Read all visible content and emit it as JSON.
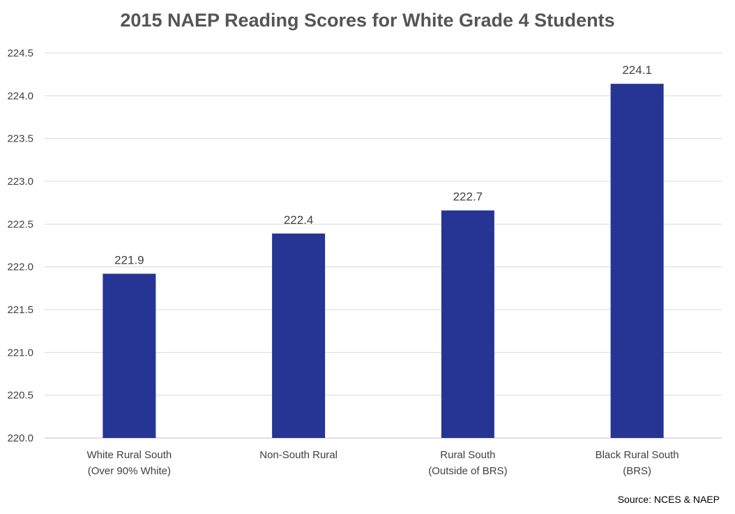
{
  "chart_data": {
    "type": "bar",
    "title": "2015 NAEP Reading Scores for White Grade 4 Students",
    "categories": [
      [
        "White Rural South",
        "(Over 90% White)"
      ],
      [
        "Non-South Rural"
      ],
      [
        "Rural South",
        "(Outside of BRS)"
      ],
      [
        "Black Rural South",
        "(BRS)"
      ]
    ],
    "values": [
      221.92,
      222.39,
      222.66,
      224.14
    ],
    "data_labels": [
      "221.9",
      "222.4",
      "222.7",
      "224.1"
    ],
    "ylim": [
      220.0,
      224.5
    ],
    "yticks": [
      "220.0",
      "220.5",
      "221.0",
      "221.5",
      "222.0",
      "222.5",
      "223.0",
      "223.5",
      "224.0",
      "224.5"
    ],
    "grid": true,
    "legend": "none",
    "bar_color": "#263593",
    "source": "Source: NCES & NAEP"
  }
}
